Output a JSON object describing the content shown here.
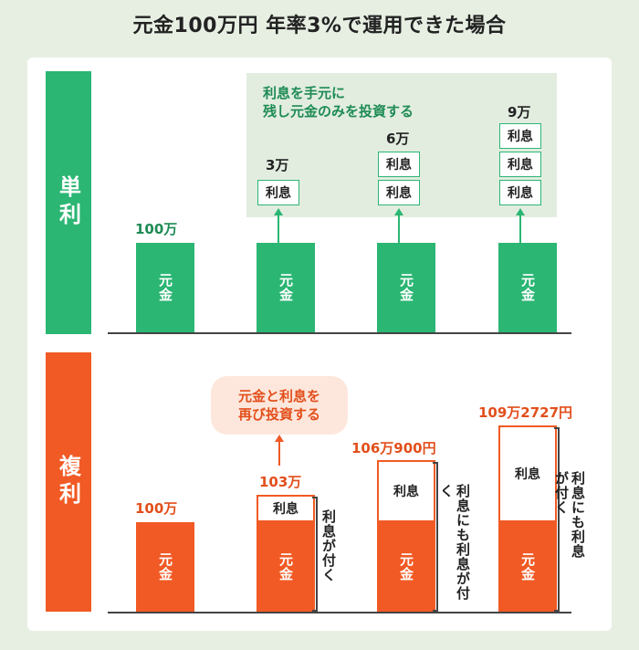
{
  "title": "元金100万円 年率3%で運用できた場合",
  "simple": {
    "side_label": "単利",
    "note_line1": "利息を手元に",
    "note_line2": "残し元金のみを投資する",
    "bars": [
      {
        "top_label": "100万",
        "principal": "元金"
      },
      {
        "top_label": "3万",
        "principal": "元金",
        "interest": [
          "利息"
        ]
      },
      {
        "top_label": "6万",
        "principal": "元金",
        "interest": [
          "利息",
          "利息"
        ]
      },
      {
        "top_label": "9万",
        "principal": "元金",
        "interest": [
          "利息",
          "利息",
          "利息"
        ]
      }
    ]
  },
  "compound": {
    "side_label": "複利",
    "note_line1": "元金と利息を",
    "note_line2": "再び投資する",
    "bars": [
      {
        "top_label": "100万",
        "principal": "元金"
      },
      {
        "top_label": "103万",
        "principal": "元金",
        "interest": "利息",
        "side_note": "利息が付く"
      },
      {
        "top_label": "106万900円",
        "principal": "元金",
        "interest": "利息",
        "side_note": "利息にも利息が付く"
      },
      {
        "top_label": "109万2727円",
        "principal": "元金",
        "interest": "利息",
        "side_note": "利息にも利息が付く"
      }
    ]
  },
  "colors": {
    "green": "#2bb673",
    "orange": "#f15a24",
    "background": "#e7efe3"
  }
}
